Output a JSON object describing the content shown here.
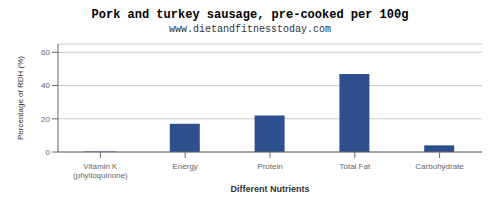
{
  "chart_data": {
    "type": "bar",
    "title": "Pork and turkey sausage, pre-cooked per 100g",
    "subtitle": "www.dietandfitnesstoday.com",
    "xlabel": "Different Nutrients",
    "ylabel": "Percentage of RDH (%)",
    "categories": [
      "Vitamin K (phylloquinone)",
      "Energy",
      "Protein",
      "Total Fat",
      "Carbohydrate"
    ],
    "values": [
      0.3,
      17,
      22,
      47,
      4
    ],
    "color": "#2d4f8e",
    "ylim": [
      0,
      65
    ],
    "yticks": [
      0,
      20,
      40,
      60
    ],
    "grid": true
  }
}
